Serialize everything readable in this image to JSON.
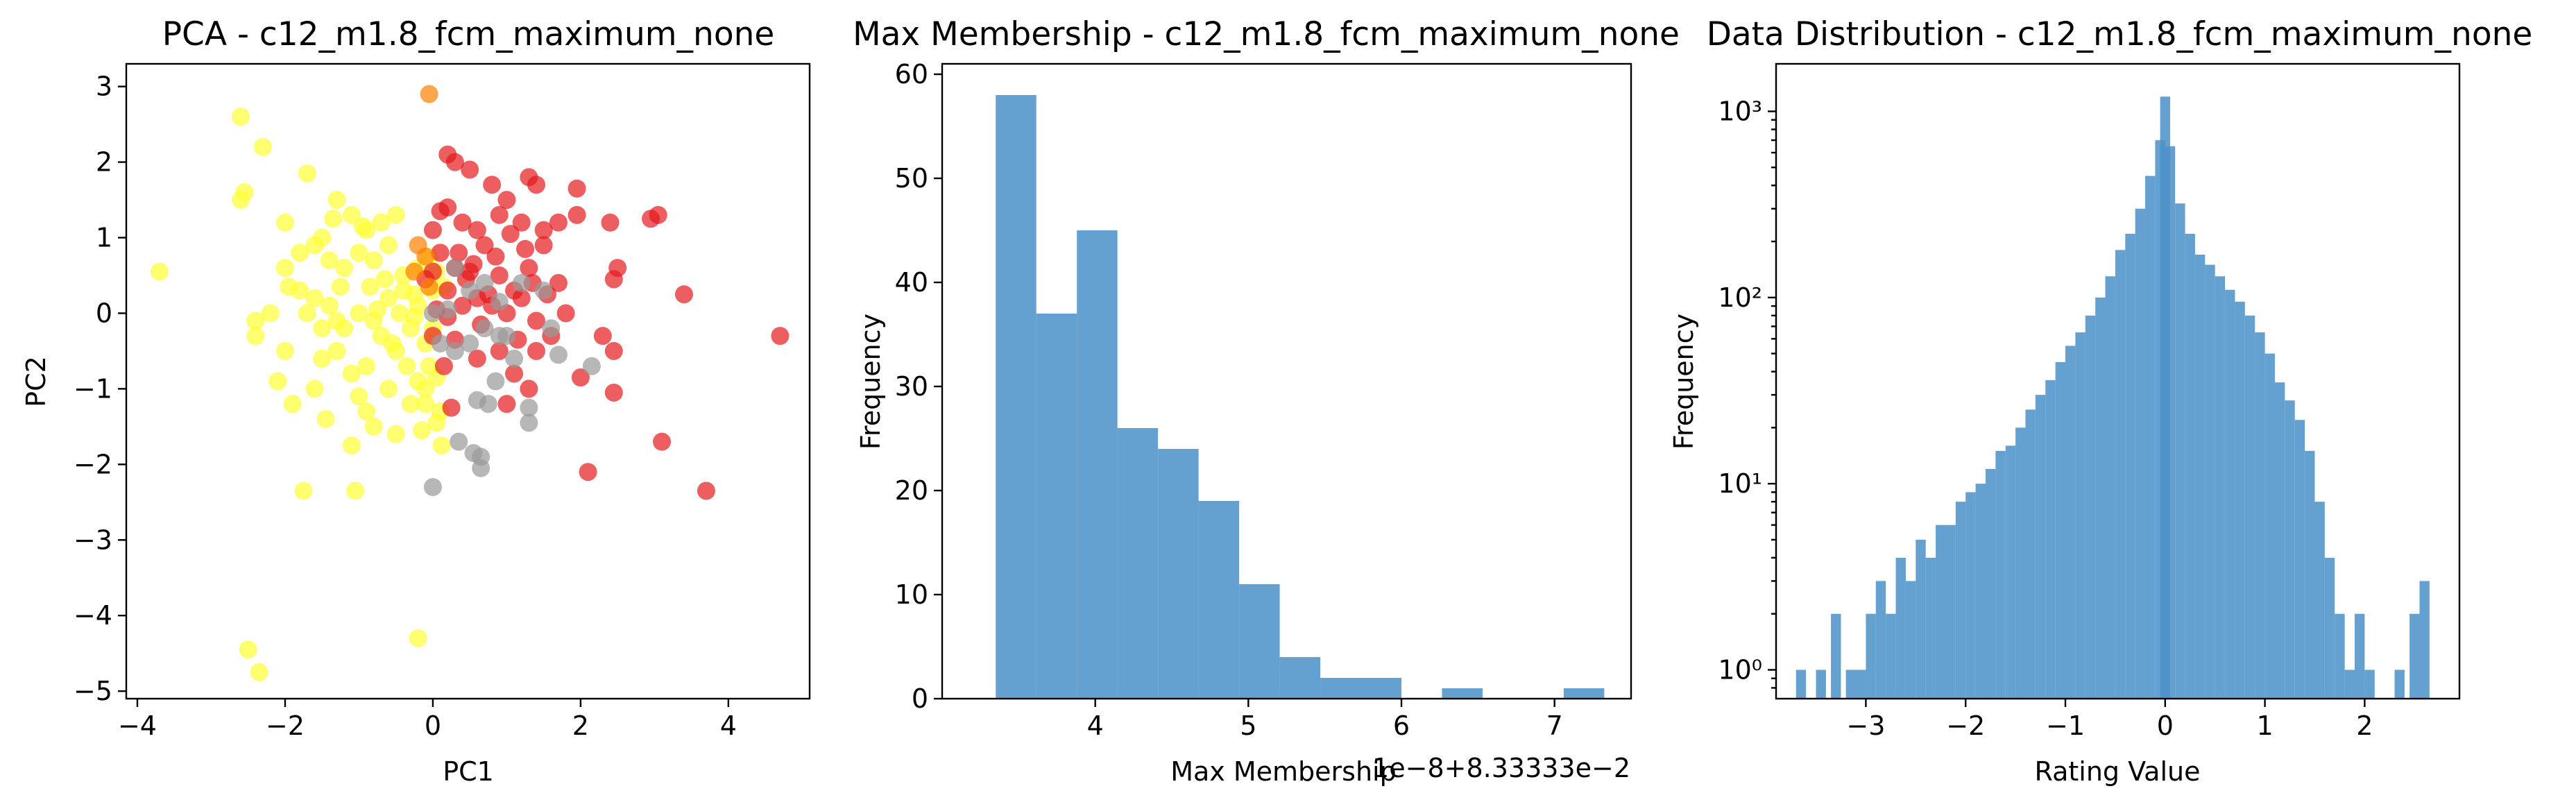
{
  "chart_data": [
    {
      "type": "scatter",
      "title": "PCA - c12_m1.8_fcm_maximum_none",
      "xlabel": "PC1",
      "ylabel": "PC2",
      "xlim": [
        -4.15,
        5.1
      ],
      "ylim": [
        -5.1,
        3.3
      ],
      "xticks": [
        -4,
        -2,
        0,
        2,
        4
      ],
      "yticks": [
        -5,
        -4,
        -3,
        -2,
        -1,
        0,
        1,
        2,
        3
      ],
      "colors": {
        "yellow": "#ffff33",
        "red": "#e41a1c",
        "gray": "#999999",
        "orange": "#ff7f00"
      },
      "series": [
        {
          "color": "#ffff33",
          "points": [
            [
              -3.7,
              0.55
            ],
            [
              -2.6,
              2.6
            ],
            [
              -2.6,
              1.5
            ],
            [
              -2.55,
              1.6
            ],
            [
              -2.3,
              2.2
            ],
            [
              -2.0,
              1.2
            ],
            [
              -1.7,
              1.85
            ],
            [
              -1.5,
              1.0
            ],
            [
              -1.3,
              1.5
            ],
            [
              -1.1,
              1.3
            ],
            [
              -0.9,
              1.1
            ],
            [
              -0.7,
              1.2
            ],
            [
              -0.5,
              1.3
            ],
            [
              -2.0,
              0.6
            ],
            [
              -1.8,
              0.8
            ],
            [
              -1.6,
              0.9
            ],
            [
              -1.4,
              0.7
            ],
            [
              -1.2,
              0.6
            ],
            [
              -1.0,
              0.8
            ],
            [
              -0.8,
              0.7
            ],
            [
              -0.6,
              0.9
            ],
            [
              -0.4,
              0.5
            ],
            [
              -2.4,
              -0.1
            ],
            [
              -2.4,
              -0.3
            ],
            [
              -2.0,
              -0.5
            ],
            [
              -1.8,
              0.3
            ],
            [
              -1.6,
              0.2
            ],
            [
              -1.4,
              0.1
            ],
            [
              -1.2,
              -0.2
            ],
            [
              -1.0,
              0.0
            ],
            [
              -0.8,
              -0.1
            ],
            [
              -0.6,
              0.2
            ],
            [
              -0.4,
              0.3
            ],
            [
              -0.2,
              0.1
            ],
            [
              -1.9,
              -1.2
            ],
            [
              -2.1,
              -0.9
            ],
            [
              -1.5,
              -0.6
            ],
            [
              -1.3,
              -0.5
            ],
            [
              -1.1,
              -0.8
            ],
            [
              -0.9,
              -0.7
            ],
            [
              -0.7,
              -0.3
            ],
            [
              -0.5,
              -0.5
            ],
            [
              -0.3,
              -0.2
            ],
            [
              -0.1,
              -0.4
            ],
            [
              -1.0,
              -1.1
            ],
            [
              -0.8,
              -1.5
            ],
            [
              -0.5,
              -1.6
            ],
            [
              -0.3,
              -1.2
            ],
            [
              -0.1,
              -1.0
            ],
            [
              0.1,
              -1.3
            ],
            [
              -1.1,
              -1.75
            ],
            [
              -0.9,
              -1.3
            ],
            [
              -1.75,
              -2.35
            ],
            [
              -1.05,
              -2.35
            ],
            [
              -0.2,
              -4.3
            ],
            [
              -2.5,
              -4.45
            ],
            [
              -2.35,
              -4.75
            ],
            [
              -1.7,
              0.0
            ],
            [
              -1.5,
              -0.2
            ],
            [
              -1.3,
              -0.1
            ],
            [
              -0.45,
              0.0
            ],
            [
              -0.25,
              -0.05
            ],
            [
              0.0,
              0.3
            ],
            [
              -0.2,
              0.6
            ],
            [
              0.05,
              0.55
            ],
            [
              -0.05,
              -0.7
            ],
            [
              -0.2,
              -0.9
            ],
            [
              0.05,
              -0.85
            ],
            [
              -0.6,
              -1.0
            ],
            [
              -0.35,
              -0.7
            ],
            [
              -1.6,
              -1.0
            ],
            [
              -1.45,
              -1.4
            ],
            [
              -0.65,
              0.45
            ],
            [
              -0.85,
              0.35
            ],
            [
              -1.25,
              0.35
            ],
            [
              -1.95,
              0.35
            ],
            [
              -2.2,
              0.0
            ],
            [
              -1.35,
              1.25
            ],
            [
              -0.95,
              1.15
            ],
            [
              -0.25,
              0.25
            ],
            [
              0.15,
              0.35
            ],
            [
              0.0,
              -0.2
            ],
            [
              -0.1,
              -1.2
            ],
            [
              0.05,
              -1.45
            ],
            [
              0.12,
              -1.75
            ],
            [
              -0.15,
              -1.55
            ],
            [
              -0.55,
              -0.4
            ],
            [
              -0.75,
              0.05
            ],
            [
              -0.05,
              0.75
            ]
          ]
        },
        {
          "color": "#e41a1c",
          "points": [
            [
              0.2,
              2.1
            ],
            [
              0.3,
              2.0
            ],
            [
              0.5,
              1.9
            ],
            [
              0.8,
              1.7
            ],
            [
              1.0,
              1.5
            ],
            [
              1.3,
              1.8
            ],
            [
              1.4,
              1.7
            ],
            [
              1.95,
              1.65
            ],
            [
              0.1,
              1.35
            ],
            [
              0.2,
              1.4
            ],
            [
              0.4,
              1.2
            ],
            [
              0.6,
              1.1
            ],
            [
              0.9,
              1.3
            ],
            [
              1.2,
              1.2
            ],
            [
              1.5,
              1.1
            ],
            [
              1.95,
              1.3
            ],
            [
              2.4,
              1.2
            ],
            [
              2.95,
              1.25
            ],
            [
              3.05,
              1.3
            ],
            [
              0.0,
              1.1
            ],
            [
              0.1,
              0.8
            ],
            [
              0.3,
              0.6
            ],
            [
              0.5,
              0.55
            ],
            [
              0.7,
              0.9
            ],
            [
              0.9,
              0.5
            ],
            [
              1.1,
              0.3
            ],
            [
              1.3,
              0.6
            ],
            [
              1.5,
              0.9
            ],
            [
              1.7,
              0.4
            ],
            [
              2.5,
              0.6
            ],
            [
              2.45,
              0.45
            ],
            [
              0.0,
              0.55
            ],
            [
              0.2,
              0.3
            ],
            [
              0.4,
              0.1
            ],
            [
              0.6,
              0.2
            ],
            [
              0.8,
              0.1
            ],
            [
              1.0,
              0.0
            ],
            [
              1.2,
              0.2
            ],
            [
              1.4,
              -0.1
            ],
            [
              1.6,
              -0.3
            ],
            [
              2.3,
              -0.3
            ],
            [
              2.45,
              -0.5
            ],
            [
              0.3,
              -0.35
            ],
            [
              0.6,
              -0.6
            ],
            [
              0.9,
              -0.5
            ],
            [
              1.1,
              -0.8
            ],
            [
              1.3,
              -1.0
            ],
            [
              2.0,
              -0.85
            ],
            [
              2.45,
              -1.05
            ],
            [
              0.25,
              -1.25
            ],
            [
              1.0,
              -1.2
            ],
            [
              1.4,
              -0.5
            ],
            [
              3.4,
              0.25
            ],
            [
              4.7,
              -0.3
            ],
            [
              3.1,
              -1.7
            ],
            [
              2.1,
              -2.1
            ],
            [
              3.7,
              -2.35
            ],
            [
              0.0,
              -0.3
            ],
            [
              0.15,
              -0.7
            ],
            [
              0.35,
              0.8
            ],
            [
              0.75,
              0.25
            ],
            [
              1.05,
              1.05
            ],
            [
              1.25,
              0.85
            ],
            [
              0.45,
              0.45
            ],
            [
              0.85,
              0.75
            ],
            [
              0.2,
              -0.05
            ],
            [
              1.35,
              0.4
            ],
            [
              1.8,
              0.0
            ],
            [
              0.55,
              0.65
            ],
            [
              1.15,
              -0.35
            ],
            [
              0.65,
              -0.15
            ],
            [
              -0.1,
              0.45
            ],
            [
              0.05,
              0.05
            ],
            [
              1.55,
              0.25
            ],
            [
              1.7,
              1.2
            ]
          ]
        },
        {
          "color": "#999999",
          "points": [
            [
              0.3,
              0.6
            ],
            [
              0.5,
              0.3
            ],
            [
              0.7,
              0.4
            ],
            [
              0.9,
              0.15
            ],
            [
              1.2,
              0.4
            ],
            [
              1.5,
              0.3
            ],
            [
              1.6,
              -0.2
            ],
            [
              1.7,
              -0.55
            ],
            [
              2.15,
              -0.7
            ],
            [
              0.1,
              -0.4
            ],
            [
              0.3,
              -0.5
            ],
            [
              0.5,
              -0.4
            ],
            [
              0.7,
              -0.2
            ],
            [
              0.9,
              -0.3
            ],
            [
              1.1,
              -0.6
            ],
            [
              1.3,
              -1.25
            ],
            [
              1.3,
              -1.45
            ],
            [
              0.6,
              -1.15
            ],
            [
              0.75,
              -1.2
            ],
            [
              0.35,
              -1.7
            ],
            [
              0.55,
              -1.85
            ],
            [
              0.65,
              -1.9
            ],
            [
              0.65,
              -2.05
            ],
            [
              0.0,
              -2.3
            ],
            [
              0.0,
              0.0
            ],
            [
              0.2,
              0.05
            ],
            [
              0.85,
              -0.9
            ],
            [
              1.0,
              -0.3
            ]
          ]
        },
        {
          "color": "#ff7f00",
          "points": [
            [
              -0.05,
              2.9
            ],
            [
              -0.2,
              0.9
            ],
            [
              -0.1,
              0.75
            ],
            [
              -0.25,
              0.55
            ],
            [
              -0.05,
              0.35
            ]
          ]
        }
      ]
    },
    {
      "type": "bar",
      "title": "Max Membership - c12_m1.8_fcm_maximum_none",
      "xlabel": "Max Membership",
      "ylabel": "Frequency",
      "offset_text": "1e−8+8.33333e−2",
      "xlim": [
        3.0,
        7.5
      ],
      "ylim": [
        0,
        61
      ],
      "xticks": [
        4,
        5,
        6,
        7
      ],
      "yticks": [
        0,
        10,
        20,
        30,
        40,
        50,
        60
      ],
      "bin_edges": [
        3.35,
        3.615,
        3.88,
        4.145,
        4.41,
        4.675,
        4.94,
        5.205,
        5.47,
        5.735,
        6.0,
        6.265,
        6.53,
        6.795,
        7.06,
        7.325
      ],
      "values": [
        58,
        37,
        45,
        26,
        24,
        19,
        11,
        4,
        2,
        2,
        0,
        1,
        0,
        0,
        1
      ],
      "color": "#4a90c8"
    },
    {
      "type": "bar",
      "title": "Data Distribution - c12_m1.8_fcm_maximum_none",
      "xlabel": "Rating Value",
      "ylabel": "Frequency",
      "yscale": "log",
      "xlim": [
        -3.9,
        2.95
      ],
      "ylim": [
        0.7,
        1800
      ],
      "xticks": [
        -3,
        -2,
        -1,
        0,
        1,
        2
      ],
      "yticks": [
        1,
        10,
        100,
        1000
      ],
      "ytick_labels": [
        "10⁰",
        "10¹",
        "10²",
        "10³"
      ],
      "color": "#4a90c8",
      "x": [
        -3.65,
        -3.45,
        -3.3,
        -3.15,
        -3.05,
        -2.95,
        -2.85,
        -2.75,
        -2.65,
        -2.55,
        -2.45,
        -2.35,
        -2.25,
        -2.15,
        -2.05,
        -1.95,
        -1.85,
        -1.75,
        -1.65,
        -1.55,
        -1.45,
        -1.35,
        -1.25,
        -1.15,
        -1.05,
        -0.95,
        -0.85,
        -0.75,
        -0.65,
        -0.55,
        -0.45,
        -0.35,
        -0.25,
        -0.15,
        -0.05,
        0.0,
        0.05,
        0.15,
        0.25,
        0.35,
        0.45,
        0.55,
        0.65,
        0.75,
        0.85,
        0.95,
        1.05,
        1.15,
        1.25,
        1.35,
        1.45,
        1.55,
        1.65,
        1.75,
        1.85,
        1.95,
        2.05,
        2.35,
        2.5,
        2.6
      ],
      "values": [
        1,
        1,
        2,
        1,
        1,
        2,
        3,
        2,
        4,
        3,
        5,
        4,
        6,
        6,
        8,
        9,
        10,
        12,
        15,
        16,
        20,
        25,
        30,
        36,
        45,
        55,
        65,
        80,
        100,
        130,
        180,
        220,
        300,
        450,
        700,
        1200,
        650,
        320,
        220,
        170,
        150,
        130,
        110,
        95,
        80,
        65,
        50,
        35,
        28,
        22,
        15,
        8,
        4,
        2,
        1,
        2,
        1,
        1,
        2,
        3
      ]
    }
  ]
}
